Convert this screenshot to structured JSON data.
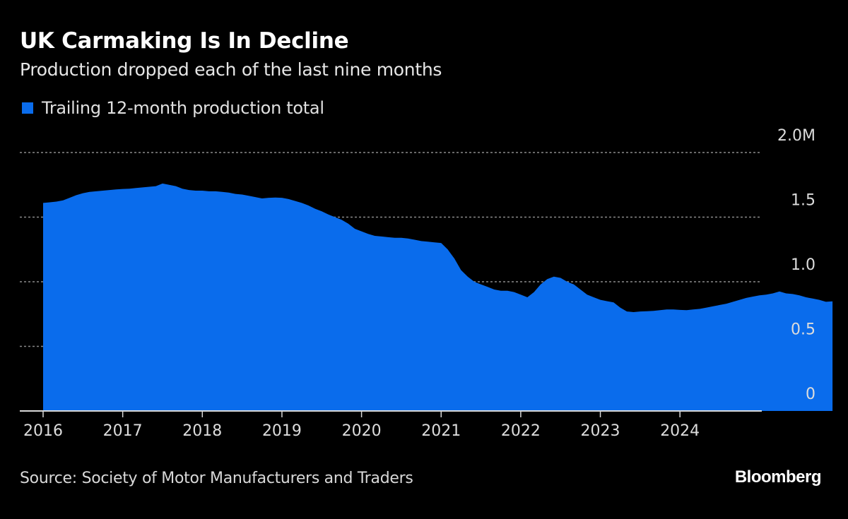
{
  "header": {
    "title": "UK Carmaking Is In Decline",
    "subtitle": "Production dropped each of the last nine months"
  },
  "footer": {
    "source": "Source: Society of Motor Manufacturers and Traders",
    "brand": "Bloomberg"
  },
  "colors": {
    "area": "#0a6cec",
    "background": "#000000",
    "gridline": "#8a8a8a",
    "axis": "#d9d9d9"
  },
  "chart_data": {
    "type": "area",
    "title": "UK Carmaking Is In Decline",
    "subtitle": "Production dropped each of the last nine months",
    "xlabel": "",
    "ylabel": "",
    "unit": "million vehicles",
    "legend": [
      {
        "name": "Trailing 12-month production total",
        "color": "#0a6cec"
      }
    ],
    "legend_position": "top-left",
    "y_axis_position": "right",
    "grid": true,
    "ylim": [
      0,
      2.0
    ],
    "yticks": [
      0,
      0.5,
      1.0,
      1.5,
      2.0
    ],
    "ytick_labels": [
      "0",
      "0.5",
      "1.0",
      "1.5",
      "2.0M"
    ],
    "xlim": [
      2016.0,
      2025.0
    ],
    "xticks": [
      2016,
      2017,
      2018,
      2019,
      2020,
      2021,
      2022,
      2023,
      2024
    ],
    "xtick_labels": [
      "2016",
      "2017",
      "2018",
      "2019",
      "2020",
      "2021",
      "2022",
      "2023",
      "2024"
    ],
    "x_start": "2016-01",
    "x_step": "month",
    "series": [
      {
        "name": "Trailing 12-month production total",
        "values": [
          1.61,
          1.615,
          1.62,
          1.63,
          1.65,
          1.67,
          1.685,
          1.695,
          1.7,
          1.705,
          1.71,
          1.715,
          1.718,
          1.72,
          1.725,
          1.73,
          1.735,
          1.74,
          1.76,
          1.75,
          1.74,
          1.72,
          1.71,
          1.705,
          1.705,
          1.7,
          1.7,
          1.695,
          1.69,
          1.68,
          1.675,
          1.665,
          1.655,
          1.645,
          1.65,
          1.652,
          1.65,
          1.64,
          1.625,
          1.61,
          1.59,
          1.565,
          1.545,
          1.52,
          1.5,
          1.48,
          1.45,
          1.41,
          1.39,
          1.37,
          1.355,
          1.35,
          1.345,
          1.34,
          1.34,
          1.335,
          1.325,
          1.315,
          1.31,
          1.305,
          1.3,
          1.25,
          1.18,
          1.09,
          1.04,
          1.0,
          0.98,
          0.96,
          0.94,
          0.93,
          0.93,
          0.92,
          0.9,
          0.88,
          0.92,
          0.98,
          1.02,
          1.04,
          1.03,
          1.0,
          0.98,
          0.94,
          0.9,
          0.88,
          0.86,
          0.85,
          0.84,
          0.8,
          0.77,
          0.765,
          0.77,
          0.772,
          0.775,
          0.78,
          0.785,
          0.785,
          0.782,
          0.78,
          0.785,
          0.79,
          0.8,
          0.81,
          0.82,
          0.83,
          0.845,
          0.86,
          0.875,
          0.885,
          0.895,
          0.9,
          0.91,
          0.925,
          0.91,
          0.905,
          0.895,
          0.88,
          0.87,
          0.86,
          0.845,
          0.848
        ]
      }
    ]
  }
}
